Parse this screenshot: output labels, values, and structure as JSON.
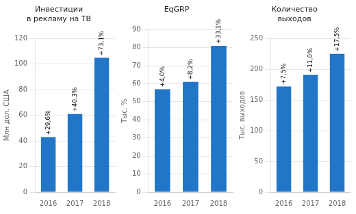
{
  "chart_data": [
    {
      "type": "bar",
      "title": "Инвестиции\nв рекламу на ТВ",
      "ylabel": "Млн дол. США",
      "categories": [
        "2016",
        "2017",
        "2018"
      ],
      "values": [
        43,
        61,
        105
      ],
      "annotations": [
        "+29,6%",
        "+40,3%",
        "+73,1%"
      ],
      "color": "#2176c7",
      "ylim": [
        0,
        120
      ],
      "yticks": [
        0,
        20,
        40,
        60,
        80,
        100,
        120
      ],
      "grid": true
    },
    {
      "type": "bar",
      "title": "EqGRP",
      "ylabel": "Тыс. %",
      "categories": [
        "2016",
        "2017",
        "2018"
      ],
      "values": [
        57,
        61,
        81
      ],
      "annotations": [
        "+4,0%",
        "+8,2%",
        "+33,1%"
      ],
      "color": "#2176c7",
      "ylim": [
        0,
        90
      ],
      "yticks": [
        0,
        10,
        20,
        30,
        40,
        50,
        60,
        70,
        80,
        90
      ],
      "grid": true
    },
    {
      "type": "bar",
      "title": "Количество\nвыходов",
      "ylabel": "Тыс. выходов",
      "categories": [
        "2016",
        "2017",
        "2018"
      ],
      "values": [
        172,
        191,
        225
      ],
      "annotations": [
        "+7,5%",
        "+11,0%",
        "+17,5%"
      ],
      "color": "#2176c7",
      "ylim": [
        0,
        250
      ],
      "yticks": [
        0,
        50,
        100,
        150,
        200,
        250
      ],
      "grid": true
    }
  ]
}
